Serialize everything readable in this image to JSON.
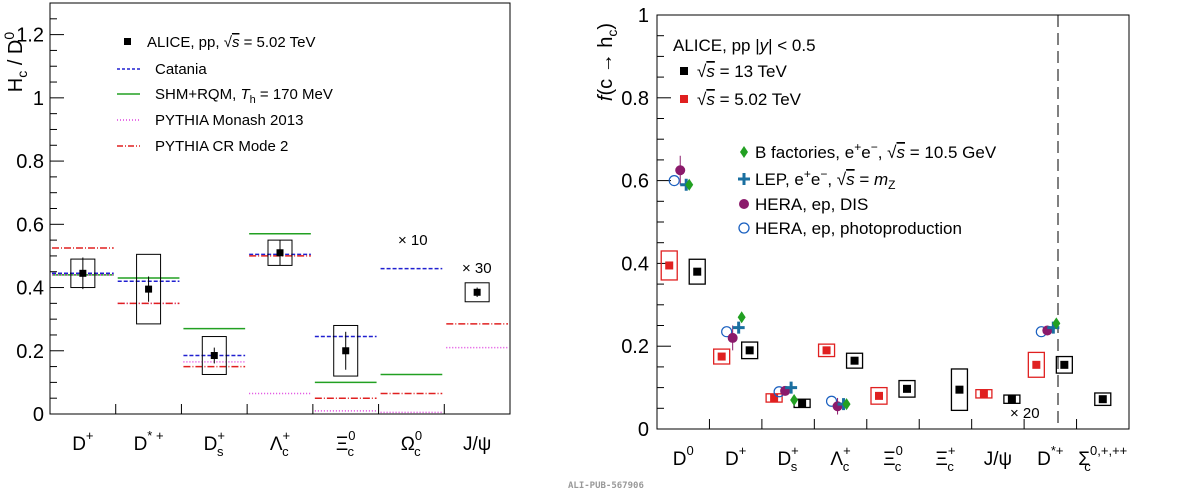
{
  "colors": {
    "data": "#000000",
    "catania": "#2020d0",
    "shm": "#22a022",
    "monash": "#e040e0",
    "cr2": "#e02020",
    "bfact": "#22a022",
    "lep": "#1a6fa0",
    "hera_dis": "#8b1a6b",
    "hera_photo": "#1a60c0",
    "pp502": "#e02020",
    "pp13": "#000000"
  },
  "pub_id": "ALI-PUB-567906",
  "chart_data": [
    {
      "type": "scatter",
      "ylabel": "H_c / D^0",
      "ylim": [
        0,
        1.3
      ],
      "yticks": [
        "0",
        "0.2",
        "0.4",
        "0.6",
        "0.8",
        "1",
        "1.2"
      ],
      "ytick_values": [
        0,
        0.2,
        0.4,
        0.6,
        0.8,
        1.0,
        1.2
      ],
      "categories": [
        "D⁺",
        "D*⁺",
        "Dₛ⁺",
        "Λc⁺",
        "Ξc⁰",
        "Ωc⁰",
        "J/ψ"
      ],
      "legend": {
        "placement": "top-left",
        "data_label": "ALICE, pp, √s = 5.02 TeV",
        "entries": [
          {
            "key": "catania",
            "label": "Catania"
          },
          {
            "key": "shm",
            "label": "SHM+RQM, T_h = 170 MeV"
          },
          {
            "key": "monash",
            "label": "PYTHIA Monash 2013"
          },
          {
            "key": "cr2",
            "label": "PYTHIA CR Mode 2"
          }
        ]
      },
      "annotations": [
        {
          "text": "× 10",
          "category": 5
        },
        {
          "text": "× 30",
          "category": 6
        }
      ],
      "data": [
        {
          "x": 0,
          "y": 0.445,
          "stat": 0.05,
          "syst": 0.045
        },
        {
          "x": 1,
          "y": 0.395,
          "stat": 0.04,
          "syst": 0.11
        },
        {
          "x": 2,
          "y": 0.185,
          "stat": 0.025,
          "syst": 0.06
        },
        {
          "x": 3,
          "y": 0.51,
          "stat": 0.04,
          "syst": 0.04
        },
        {
          "x": 4,
          "y": 0.2,
          "stat": 0.06,
          "syst": 0.08
        },
        {
          "x": 6,
          "y": 0.385,
          "stat": 0.015,
          "syst": 0.03
        }
      ],
      "models": {
        "catania": [
          0.445,
          0.42,
          0.185,
          0.505,
          0.245,
          0.46,
          null
        ],
        "shm": [
          0.44,
          0.43,
          0.27,
          0.57,
          0.1,
          0.125,
          null
        ],
        "monash": [
          0.44,
          0.35,
          0.165,
          0.065,
          0.01,
          0.005,
          0.21
        ],
        "cr2": [
          0.525,
          0.35,
          0.15,
          0.5,
          0.05,
          0.065,
          0.285
        ]
      }
    },
    {
      "type": "scatter",
      "ylabel": "f(c → h_c)",
      "ylim": [
        0,
        1
      ],
      "yticks": [
        "0",
        "0.2",
        "0.4",
        "0.6",
        "0.8",
        "1"
      ],
      "ytick_values": [
        0,
        0.2,
        0.4,
        0.6,
        0.8,
        1.0
      ],
      "categories": [
        "D⁰",
        "D⁺",
        "Dₛ⁺",
        "Λc⁺",
        "Ξc⁰",
        "Ξc⁺",
        "J/ψ",
        "D*⁺",
        "Σc⁰,⁺,⁺⁺"
      ],
      "header": "ALICE, pp |y| < 0.5",
      "legend": {
        "placement": "top-left",
        "entries": [
          {
            "key": "pp13",
            "label": "√s = 13 TeV"
          },
          {
            "key": "pp502",
            "label": "√s = 5.02 TeV"
          },
          {
            "key": "bfact",
            "label": "B factories, e⁺e⁻, √s = 10.5 GeV"
          },
          {
            "key": "lep",
            "label": "LEP, e⁺e⁻, √s = m_Z"
          },
          {
            "key": "hera_dis",
            "label": "HERA, ep, DIS"
          },
          {
            "key": "hera_photo",
            "label": "HERA, ep, photoproduction"
          }
        ]
      },
      "annotations": [
        {
          "text": "× 20",
          "category": 6
        }
      ],
      "pp13": [
        {
          "x": 0,
          "y": 0.38,
          "syst": 0.03
        },
        {
          "x": 1,
          "y": 0.19,
          "syst": 0.02
        },
        {
          "x": 2,
          "y": 0.062,
          "syst": 0.01
        },
        {
          "x": 3,
          "y": 0.165,
          "syst": 0.018
        },
        {
          "x": 4,
          "y": 0.097,
          "syst": 0.02
        },
        {
          "x": 5,
          "y": 0.095,
          "syst": 0.05
        },
        {
          "x": 6,
          "y": 0.072,
          "syst": 0.01
        },
        {
          "x": 7,
          "y": 0.155,
          "syst": 0.02
        },
        {
          "x": 8,
          "y": 0.072,
          "syst": 0.015
        }
      ],
      "pp502": [
        {
          "x": 0,
          "y": 0.395,
          "syst": 0.035
        },
        {
          "x": 1,
          "y": 0.175,
          "syst": 0.018
        },
        {
          "x": 2,
          "y": 0.075,
          "syst": 0.01
        },
        {
          "x": 3,
          "y": 0.19,
          "syst": 0.015
        },
        {
          "x": 4,
          "y": 0.08,
          "syst": 0.02
        },
        {
          "x": 6,
          "y": 0.085,
          "syst": 0.01
        },
        {
          "x": 7,
          "y": 0.155,
          "syst": 0.03
        }
      ],
      "bfact": [
        {
          "x": 0,
          "y": 0.59
        },
        {
          "x": 1,
          "y": 0.27
        },
        {
          "x": 2,
          "y": 0.07
        },
        {
          "x": 3,
          "y": 0.06
        },
        {
          "x": 7,
          "y": 0.255
        }
      ],
      "lep": [
        {
          "x": 0,
          "y": 0.59
        },
        {
          "x": 1,
          "y": 0.245
        },
        {
          "x": 2,
          "y": 0.1
        },
        {
          "x": 3,
          "y": 0.06
        },
        {
          "x": 7,
          "y": 0.245
        }
      ],
      "hera_dis": [
        {
          "x": 0,
          "y": 0.625,
          "err": 0.035
        },
        {
          "x": 1,
          "y": 0.22,
          "err": 0.03
        },
        {
          "x": 2,
          "y": 0.092,
          "err": 0.01
        },
        {
          "x": 3,
          "y": 0.055,
          "err": 0.02
        },
        {
          "x": 7,
          "y": 0.238,
          "err": 0.01
        }
      ],
      "hera_photo": [
        {
          "x": 0,
          "y": 0.6
        },
        {
          "x": 1,
          "y": 0.235
        },
        {
          "x": 2,
          "y": 0.09
        },
        {
          "x": 3,
          "y": 0.067
        },
        {
          "x": 7,
          "y": 0.235
        }
      ]
    }
  ]
}
